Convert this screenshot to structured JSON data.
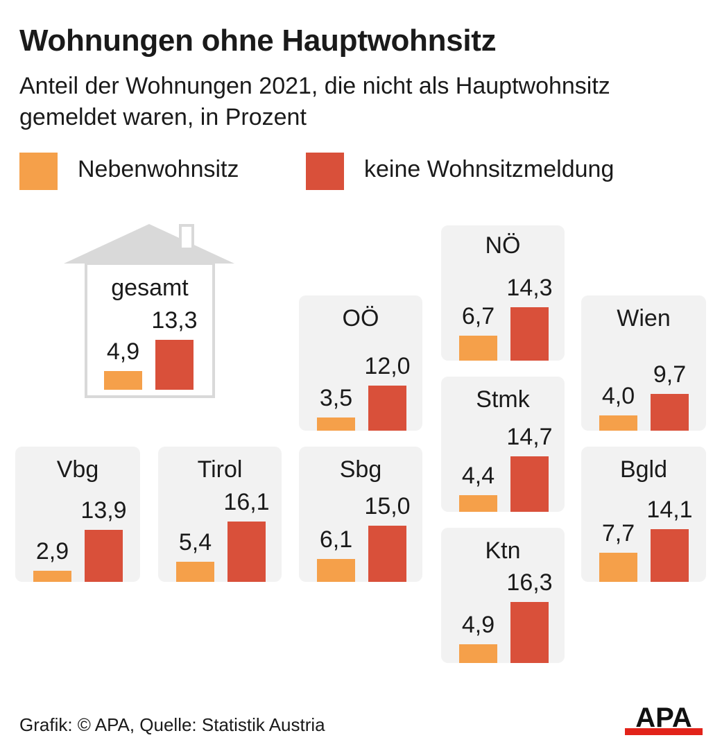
{
  "header": {
    "title": "Wohnungen ohne Hauptwohnsitz",
    "subtitle": "Anteil der Wohnungen 2021, die nicht als Hauptwohnsitz gemeldet waren, in Prozent"
  },
  "colors": {
    "nebenwohnsitz": "#f5a04a",
    "keine": "#d9503a",
    "tile": "#f2f2f2",
    "house": "#d9d9d9"
  },
  "chart_data": {
    "type": "bar",
    "series_names": [
      "Nebenwohnsitz",
      "keine Wohnsitzmeldung"
    ],
    "unit": "Prozent",
    "regions": [
      {
        "name": "gesamt",
        "nebenwohnsitz": 4.9,
        "keine": 13.3,
        "nebenwohnsitz_label": "4,9",
        "keine_label": "13,3"
      },
      {
        "name": "NÖ",
        "nebenwohnsitz": 6.7,
        "keine": 14.3,
        "nebenwohnsitz_label": "6,7",
        "keine_label": "14,3"
      },
      {
        "name": "OÖ",
        "nebenwohnsitz": 3.5,
        "keine": 12.0,
        "nebenwohnsitz_label": "3,5",
        "keine_label": "12,0"
      },
      {
        "name": "Wien",
        "nebenwohnsitz": 4.0,
        "keine": 9.7,
        "nebenwohnsitz_label": "4,0",
        "keine_label": "9,7"
      },
      {
        "name": "Stmk",
        "nebenwohnsitz": 4.4,
        "keine": 14.7,
        "nebenwohnsitz_label": "4,4",
        "keine_label": "14,7"
      },
      {
        "name": "Vbg",
        "nebenwohnsitz": 2.9,
        "keine": 13.9,
        "nebenwohnsitz_label": "2,9",
        "keine_label": "13,9"
      },
      {
        "name": "Tirol",
        "nebenwohnsitz": 5.4,
        "keine": 16.1,
        "nebenwohnsitz_label": "5,4",
        "keine_label": "16,1"
      },
      {
        "name": "Sbg",
        "nebenwohnsitz": 6.1,
        "keine": 15.0,
        "nebenwohnsitz_label": "6,1",
        "keine_label": "15,0"
      },
      {
        "name": "Bgld",
        "nebenwohnsitz": 7.7,
        "keine": 14.1,
        "nebenwohnsitz_label": "7,7",
        "keine_label": "14,1"
      },
      {
        "name": "Ktn",
        "nebenwohnsitz": 4.9,
        "keine": 16.3,
        "nebenwohnsitz_label": "4,9",
        "keine_label": "16,3"
      }
    ]
  },
  "footer": {
    "credit": "Grafik: © APA, Quelle: Statistik Austria",
    "logo_text": "APA"
  }
}
